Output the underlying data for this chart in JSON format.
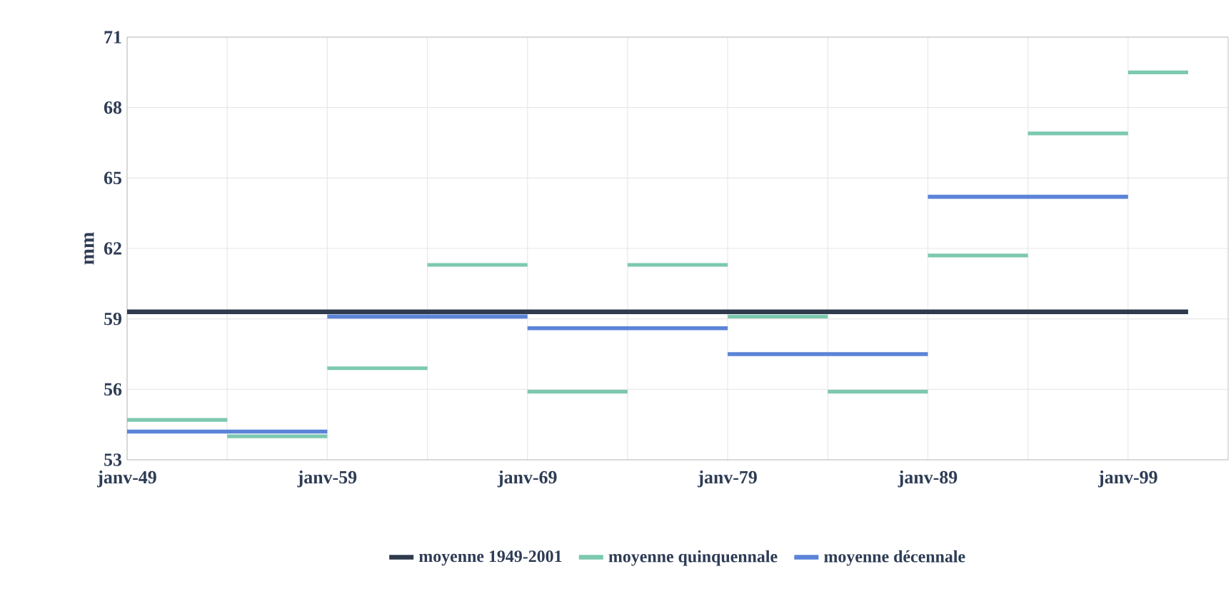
{
  "chart_data": {
    "type": "line",
    "ylabel": "mm",
    "xlim": [
      "1949-01",
      "2004-01"
    ],
    "ylim": [
      53,
      71
    ],
    "xticks": [
      {
        "value": "1949-01",
        "label": "janv-49"
      },
      {
        "value": "1954-01",
        "label": null
      },
      {
        "value": "1959-01",
        "label": "janv-59"
      },
      {
        "value": "1964-01",
        "label": null
      },
      {
        "value": "1969-01",
        "label": "janv-69"
      },
      {
        "value": "1974-01",
        "label": null
      },
      {
        "value": "1979-01",
        "label": "janv-79"
      },
      {
        "value": "1984-01",
        "label": null
      },
      {
        "value": "1989-01",
        "label": "janv-89"
      },
      {
        "value": "1994-01",
        "label": null
      },
      {
        "value": "1999-01",
        "label": "janv-99"
      }
    ],
    "yticks": [
      53,
      56,
      59,
      62,
      65,
      68,
      71
    ],
    "grid": true,
    "legend": "bottom",
    "marker": "none",
    "line_style": "solid",
    "series": [
      {
        "name": "moyenne 1949-2001",
        "color": "#2f3a4c",
        "x": [
          "1949-01",
          "2002-01"
        ],
        "values": [
          59.3,
          59.3
        ]
      },
      {
        "name": "moyenne quinquennale",
        "color": "#7cc8b0",
        "x": [
          "1949-01",
          "1954-01",
          null,
          "1954-01",
          "1959-01",
          null,
          "1959-01",
          "1964-01",
          null,
          "1964-01",
          "1969-01",
          null,
          "1969-01",
          "1974-01",
          null,
          "1974-01",
          "1979-01",
          null,
          "1979-01",
          "1984-01",
          null,
          "1984-01",
          "1989-01",
          null,
          "1989-01",
          "1994-01",
          null,
          "1994-01",
          "1999-01",
          null,
          "1999-01",
          "2002-01"
        ],
        "values": [
          54.7,
          54.7,
          null,
          54.0,
          54.0,
          null,
          56.9,
          56.9,
          null,
          61.3,
          61.3,
          null,
          55.9,
          55.9,
          null,
          61.3,
          61.3,
          null,
          59.1,
          59.1,
          null,
          55.9,
          55.9,
          null,
          61.7,
          61.7,
          null,
          66.9,
          66.9,
          null,
          69.5,
          69.5
        ]
      },
      {
        "name": "moyenne décennale",
        "color": "#5b84d8",
        "x": [
          "1949-01",
          "1959-01",
          null,
          "1959-01",
          "1969-01",
          null,
          "1969-01",
          "1979-01",
          null,
          "1979-01",
          "1989-01",
          null,
          "1989-01",
          "1999-01"
        ],
        "values": [
          54.2,
          54.2,
          null,
          59.1,
          59.1,
          null,
          58.6,
          58.6,
          null,
          57.5,
          57.5,
          null,
          64.2,
          64.2
        ]
      }
    ]
  }
}
